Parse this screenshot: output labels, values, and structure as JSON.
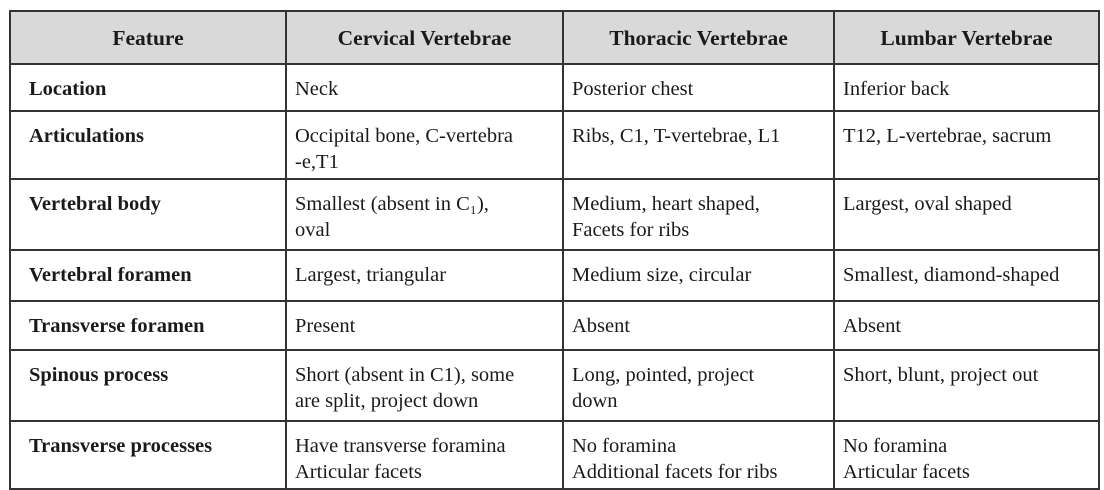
{
  "table": {
    "headers": [
      "Feature",
      "Cervical Vertebrae",
      "Thoracic Vertebrae",
      "Lumbar Vertebrae"
    ],
    "header_background": "#d9d9d9",
    "rows": [
      {
        "feature": "Location",
        "cervical": "Neck",
        "thoracic": "Posterior chest",
        "lumbar": "Inferior back"
      },
      {
        "feature": "Articulations",
        "cervical": "Occipital bone, C-vertebra\n-e,T1",
        "thoracic": "Ribs, C1, T-vertebrae, L1",
        "lumbar": "T12, L-vertebrae, sacrum"
      },
      {
        "feature": "Vertebral body",
        "cervical": "Smallest (absent in C₁),\noval",
        "thoracic": "Medium, heart shaped,\nFacets for ribs",
        "lumbar": "Largest, oval shaped"
      },
      {
        "feature": "Vertebral foramen",
        "cervical": "Largest, triangular",
        "thoracic": "Medium size, circular",
        "lumbar": "Smallest, diamond-shaped"
      },
      {
        "feature": "Transverse foramen",
        "cervical": "Present",
        "thoracic": "Absent",
        "lumbar": "Absent"
      },
      {
        "feature": "Spinous process",
        "cervical": "Short (absent in C1), some\nare split, project down",
        "thoracic": "Long, pointed, project\ndown",
        "lumbar": "Short, blunt, project out"
      },
      {
        "feature": "Transverse processes",
        "cervical": "Have transverse foramina\nArticular facets",
        "thoracic": "No foramina\nAdditional facets for ribs",
        "lumbar": "No foramina\nArticular facets"
      }
    ]
  }
}
